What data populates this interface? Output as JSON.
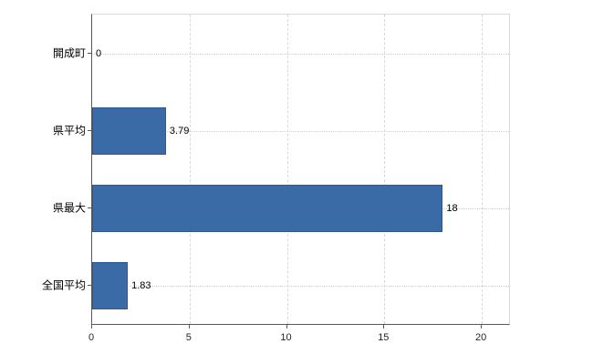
{
  "chart_data": {
    "type": "bar",
    "orientation": "horizontal",
    "title": "",
    "xlabel": "",
    "ylabel": "",
    "categories": [
      "開成町",
      "県平均",
      "県最大",
      "全国平均"
    ],
    "values": [
      0,
      3.79,
      18,
      1.83
    ],
    "value_labels": [
      "0",
      "3.79",
      "18",
      "1.83"
    ],
    "xlim": [
      0,
      21.4
    ],
    "x_ticks": [
      0,
      5,
      10,
      15,
      20
    ],
    "x_tick_labels": [
      "0",
      "5",
      "10",
      "15",
      "20"
    ],
    "grid": true,
    "legend": false,
    "colors": {
      "bar_fill": "#3a6ba6",
      "bar_border": "#2d598f",
      "axis": "#595959",
      "gridline": "#d9d9d9",
      "text": "#000000",
      "background": "#ffffff"
    }
  }
}
